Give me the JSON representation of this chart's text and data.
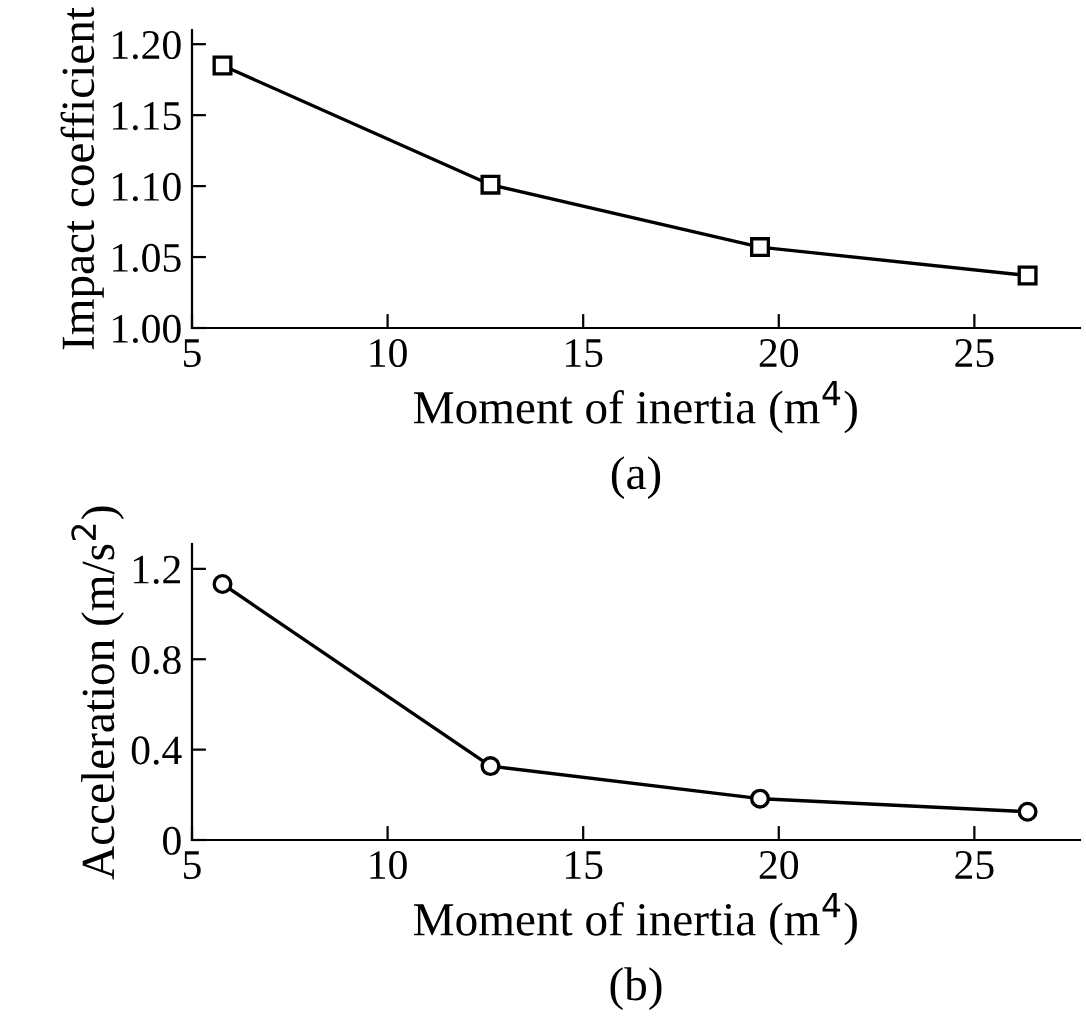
{
  "chart_data": [
    {
      "type": "line",
      "xlabel": "Moment of inertia (m$^{4}$)",
      "ylabel": "Impact coefficient",
      "annotations": [
        "(a)"
      ],
      "x": [
        5.78,
        12.63,
        19.52,
        26.36
      ],
      "series": [
        {
          "color": "#000000",
          "values": [
            1.185,
            1.101,
            1.057,
            1.037
          ]
        }
      ],
      "xlim": [
        5,
        27.7
      ],
      "xticks": [
        5,
        10,
        15,
        20,
        25
      ],
      "ylim": [
        1.0,
        1.21
      ],
      "yticks": [
        {
          "value": 1.0,
          "label": "1.00"
        },
        {
          "value": 1.05,
          "label": "1.05"
        },
        {
          "value": 1.1,
          "label": "1.10"
        },
        {
          "value": 1.15,
          "label": "1.15"
        },
        {
          "value": 1.2,
          "label": "1.20"
        }
      ],
      "marker": "square",
      "line_style": "solid",
      "grid": false,
      "legend": false
    },
    {
      "type": "line",
      "xlabel": "Moment of inertia (m$^{4}$)",
      "ylabel": "Acceleration (m/s$^{2}$)",
      "annotations": [
        "(b)"
      ],
      "x": [
        5.78,
        12.63,
        19.52,
        26.36
      ],
      "series": [
        {
          "color": "#000000",
          "values": [
            1.133,
            0.327,
            0.183,
            0.125
          ]
        }
      ],
      "xlim": [
        5,
        27.7
      ],
      "xticks": [
        5,
        10,
        15,
        20,
        25
      ],
      "ylim": [
        0,
        1.31
      ],
      "yticks": [
        0,
        0.4,
        0.8,
        1.2
      ],
      "marker": "circle",
      "line_style": "solid",
      "grid": false,
      "legend": false
    }
  ]
}
